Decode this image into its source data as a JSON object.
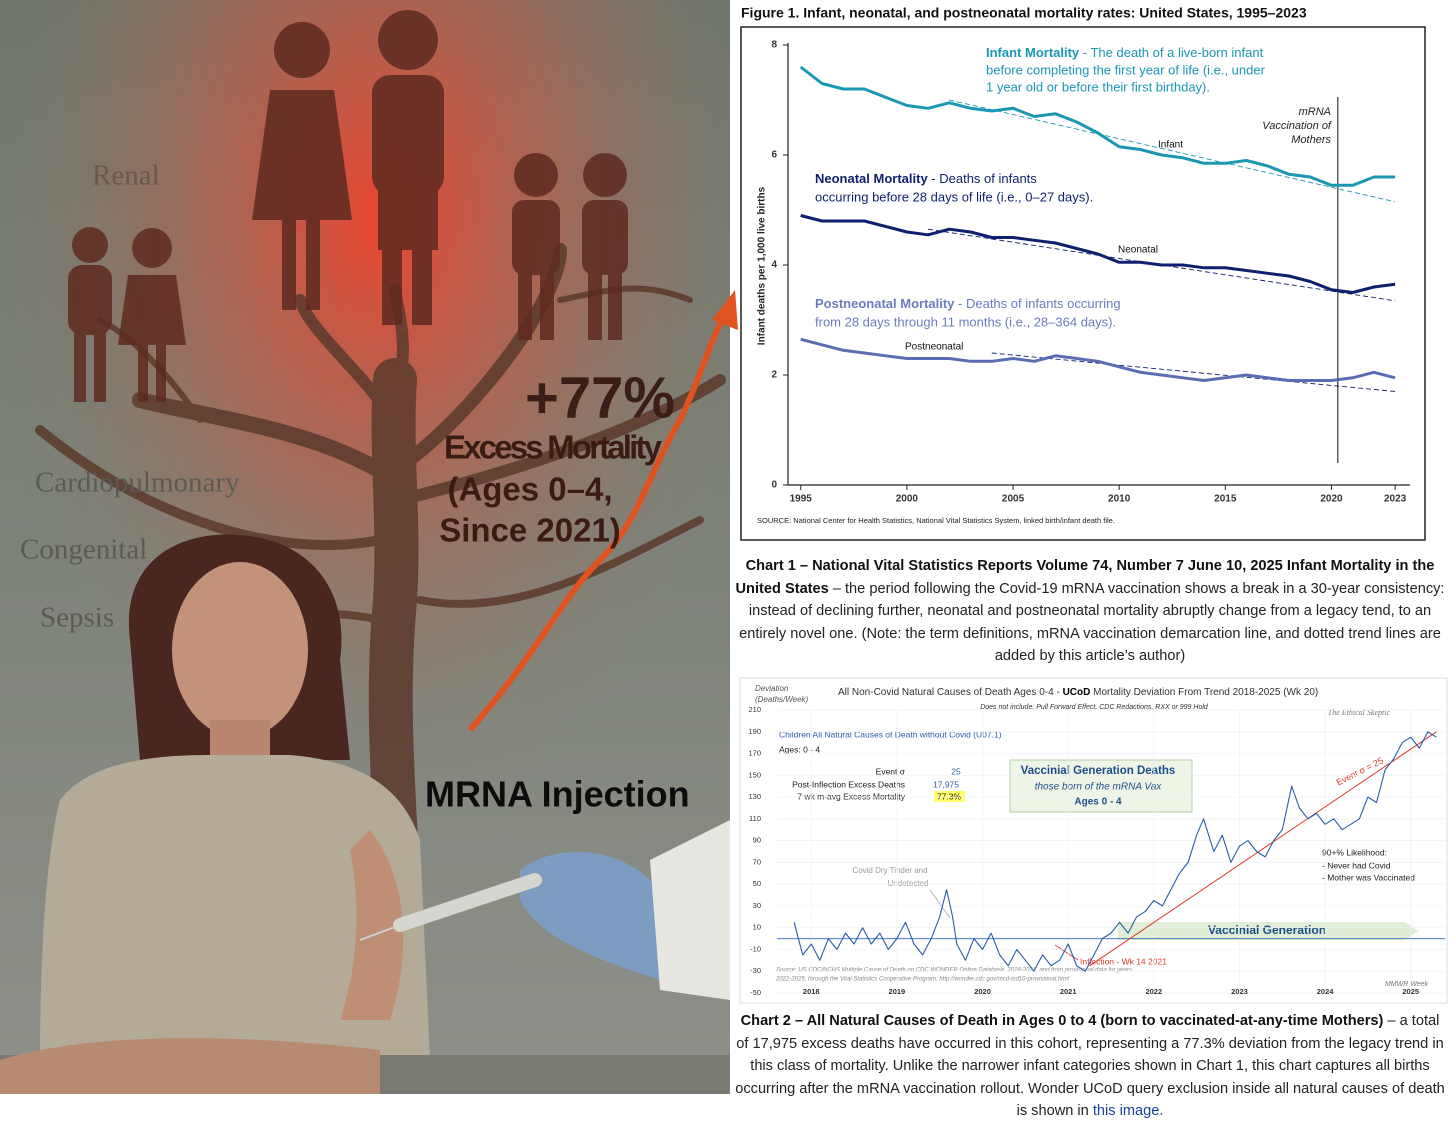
{
  "illustration": {
    "labels": [
      "Renal",
      "Cardiopulmonary",
      "Congenital",
      "Sepsis"
    ],
    "headline": "+77%",
    "headline_lines": [
      "Excess Mortality",
      "(Ages 0–4,",
      "Since 2021)"
    ],
    "injection": "MRNA Injection"
  },
  "chart_data": [
    {
      "type": "line",
      "title": "Figure 1. Infant, neonatal, and postneonatal mortality rates: United States, 1995–2023",
      "y_label": "Infant deaths per 1,000 live births",
      "source": "SOURCE: National Center for Health Statistics, National Vital Statistics System, linked birth/infant death file.",
      "x": [
        1995,
        1996,
        1997,
        1998,
        1999,
        2000,
        2001,
        2002,
        2003,
        2004,
        2005,
        2006,
        2007,
        2008,
        2009,
        2010,
        2011,
        2012,
        2013,
        2014,
        2015,
        2016,
        2017,
        2018,
        2019,
        2020,
        2021,
        2022,
        2023
      ],
      "series": [
        {
          "name": "Infant",
          "color": "#1a97b3",
          "values": [
            7.6,
            7.3,
            7.2,
            7.2,
            7.05,
            6.9,
            6.85,
            6.95,
            6.85,
            6.8,
            6.85,
            6.7,
            6.75,
            6.6,
            6.4,
            6.15,
            6.1,
            6.0,
            5.95,
            5.85,
            5.85,
            5.9,
            5.8,
            5.65,
            5.6,
            5.45,
            5.45,
            5.6,
            5.6
          ]
        },
        {
          "name": "Neonatal",
          "color": "#0e1f6e",
          "values": [
            4.9,
            4.8,
            4.8,
            4.8,
            4.7,
            4.6,
            4.55,
            4.65,
            4.6,
            4.5,
            4.5,
            4.45,
            4.4,
            4.3,
            4.2,
            4.05,
            4.05,
            4.0,
            4.0,
            3.95,
            3.95,
            3.9,
            3.85,
            3.8,
            3.7,
            3.55,
            3.5,
            3.6,
            3.65
          ]
        },
        {
          "name": "Postneonatal",
          "color": "#5a6db3",
          "values": [
            2.65,
            2.55,
            2.45,
            2.4,
            2.35,
            2.3,
            2.3,
            2.3,
            2.25,
            2.25,
            2.3,
            2.25,
            2.35,
            2.3,
            2.25,
            2.15,
            2.05,
            2.0,
            1.95,
            1.9,
            1.95,
            2.0,
            1.95,
            1.9,
            1.9,
            1.9,
            1.95,
            2.05,
            1.95
          ]
        }
      ],
      "trend_lines": [
        {
          "color": "#1a97b3",
          "style": "dashed",
          "x": [
            2002,
            2023
          ],
          "values": [
            7.0,
            5.15
          ]
        },
        {
          "color": "#0e1f6e",
          "style": "dashed",
          "x": [
            2001,
            2023
          ],
          "values": [
            4.65,
            3.35
          ]
        },
        {
          "color": "#0e1f6e",
          "style": "dashed",
          "x": [
            2004,
            2023
          ],
          "values": [
            2.4,
            1.7
          ]
        }
      ],
      "marker_line": {
        "x": 2020.3,
        "lines": [
          "mRNA",
          "Vaccination of",
          "Mothers"
        ]
      },
      "notes": [
        {
          "term": "Infant Mortality",
          "lines": [
            " -  The death of a live-born infant",
            "before completing the first year of life (i.e., under",
            "1 year old or before their first birthday)."
          ]
        },
        {
          "term": "Neonatal Mortality",
          "lines": [
            " -  Deaths of infants",
            "occurring before 28 days of life (i.e., 0–27 days)."
          ]
        },
        {
          "term": "Postneonatal Mortality",
          "lines": [
            " -  Deaths of infants occurring",
            "from 28 days through 11 months (i.e., 28–364 days)."
          ]
        }
      ],
      "xlim": [
        1994.4,
        2023.7
      ],
      "xticks": [
        1995,
        2000,
        2005,
        2010,
        2015,
        2020,
        2023
      ],
      "ylim": [
        0,
        8
      ],
      "yticks": [
        0,
        2,
        4,
        6,
        8
      ],
      "grid": false
    },
    {
      "type": "line",
      "title_parts": [
        "All Non-Covid Natural Causes of Death Ages 0-4 - ",
        "UCoD",
        " Mortality Deviation From Trend  2018-2025 (Wk 20)"
      ],
      "subtitle": "Does not include: Pull Forward Effect, CDC Redactions, RXX or 999 Hold",
      "y_label_lines": [
        "Deviation",
        "(Deaths/Week)"
      ],
      "x_label": "MMWR Week",
      "credit": "The Ethical Skeptic",
      "x": [
        2017.8,
        2017.9,
        2018.0,
        2018.1,
        2018.2,
        2018.3,
        2018.4,
        2018.5,
        2018.6,
        2018.7,
        2018.8,
        2018.9,
        2019.0,
        2019.1,
        2019.2,
        2019.3,
        2019.4,
        2019.5,
        2019.58,
        2019.65,
        2019.7,
        2019.8,
        2019.9,
        2020.0,
        2020.1,
        2020.2,
        2020.3,
        2020.4,
        2020.5,
        2020.6,
        2020.7,
        2020.8,
        2020.9,
        2021.0,
        2021.1,
        2021.2,
        2021.3,
        2021.4,
        2021.5,
        2021.6,
        2021.7,
        2021.8,
        2021.9,
        2022.0,
        2022.1,
        2022.2,
        2022.3,
        2022.4,
        2022.5,
        2022.58,
        2022.7,
        2022.8,
        2022.9,
        2023.0,
        2023.1,
        2023.2,
        2023.3,
        2023.4,
        2023.5,
        2023.61,
        2023.7,
        2023.8,
        2023.9,
        2024.0,
        2024.1,
        2024.2,
        2024.3,
        2024.4,
        2024.5,
        2024.6,
        2024.7,
        2024.8,
        2024.9,
        2025.0,
        2025.1,
        2025.2,
        2025.3
      ],
      "series": [
        {
          "name": "Children All Natural Causes of Death without Covid (U07.1)",
          "color": "#2a5ca8",
          "values": [
            15,
            -15,
            -5,
            -20,
            0,
            -10,
            5,
            -5,
            10,
            -5,
            5,
            -10,
            0,
            15,
            -5,
            -15,
            0,
            20,
            45,
            20,
            -5,
            -20,
            0,
            -10,
            5,
            -15,
            -25,
            -10,
            -20,
            -30,
            -15,
            -25,
            -20,
            -5,
            -25,
            -30,
            -15,
            0,
            5,
            15,
            5,
            20,
            25,
            35,
            30,
            45,
            60,
            70,
            95,
            110,
            80,
            95,
            70,
            85,
            90,
            80,
            75,
            90,
            100,
            140,
            120,
            110,
            115,
            105,
            110,
            100,
            105,
            110,
            130,
            125,
            155,
            165,
            180,
            185,
            175,
            190,
            185
          ]
        }
      ],
      "trend_lines": [
        {
          "color": "#e03a2e",
          "style": "solid",
          "x": [
            2021.25,
            2025.3
          ],
          "values": [
            -25,
            190
          ]
        }
      ],
      "reference_line": {
        "y": 0,
        "color": "#4a78c8"
      },
      "series_subtitle": "Ages: 0 - 4",
      "stats": [
        {
          "label": "Event σ",
          "value": "25"
        },
        {
          "label": "Post-Inflection Excess Deaths",
          "value": "17,975"
        },
        {
          "label": "7 wk m-avg Excess Mortality",
          "value": "77.3%"
        }
      ],
      "box_lines": [
        "Vaccinial Generation Deaths",
        "those born of the mRNA Vax",
        "Ages 0 - 4"
      ],
      "trend_label": "Event σ = 25",
      "likelihood_lines": [
        "90+% Likelihood:",
        "- Never had Covid",
        "- Mother was Vaccinated"
      ],
      "tinder_lines": [
        "Covid Dry Tinder and",
        "Undetected"
      ],
      "inflection_label": "Inflection - Wk 14 2021",
      "generation_label": "Vaccinial Generation",
      "source_lines": [
        "Source: US CDC/NCHS Multiple Cause of Death on CDC WONDER Online Database, 2018-2021, and from provisional data for years",
        "2022-2025, through the Vital Statistics Cooperative Program; http://wonder.cdc.gov/mcd-icd10-provisional.html"
      ],
      "xlim": [
        2017.6,
        2025.4
      ],
      "xticks": [
        2018,
        2019,
        2020,
        2021,
        2022,
        2023,
        2024,
        2025
      ],
      "ylim": [
        -50,
        210
      ],
      "yticks": [
        -50,
        -30,
        -10,
        10,
        30,
        50,
        70,
        90,
        110,
        130,
        150,
        170,
        190,
        210
      ],
      "grid": true
    }
  ],
  "captions": [
    {
      "bold": "Chart 1 – National Vital Statistics Reports Volume 74, Number 7 June 10, 2025 Infant Mortality in the United States",
      "text": " – the period following the Covid-19 mRNA vaccination shows a break in a 30-year consistency: instead of declining further, neonatal and postneonatal mortality abruptly change from a legacy tend, to an entirely novel one. (Note: the term definitions, mRNA vaccination demarcation line, and dotted trend lines are added by this article’s author)"
    },
    {
      "bold": "Chart 2 – All Natural Causes of Death in Ages 0 to 4 (born to vaccinated-at-any-time Mothers)",
      "text": " – a total of 17,975 excess deaths have occurred in this cohort, representing a 77.3% deviation from the legacy trend in this class of mortality. Unlike the narrower infant categories shown in Chart 1, this chart captures all births occurring after the mRNA vaccination rollout. Wonder UCoD query exclusion inside all natural causes of death is shown in ",
      "link": "this image."
    }
  ]
}
